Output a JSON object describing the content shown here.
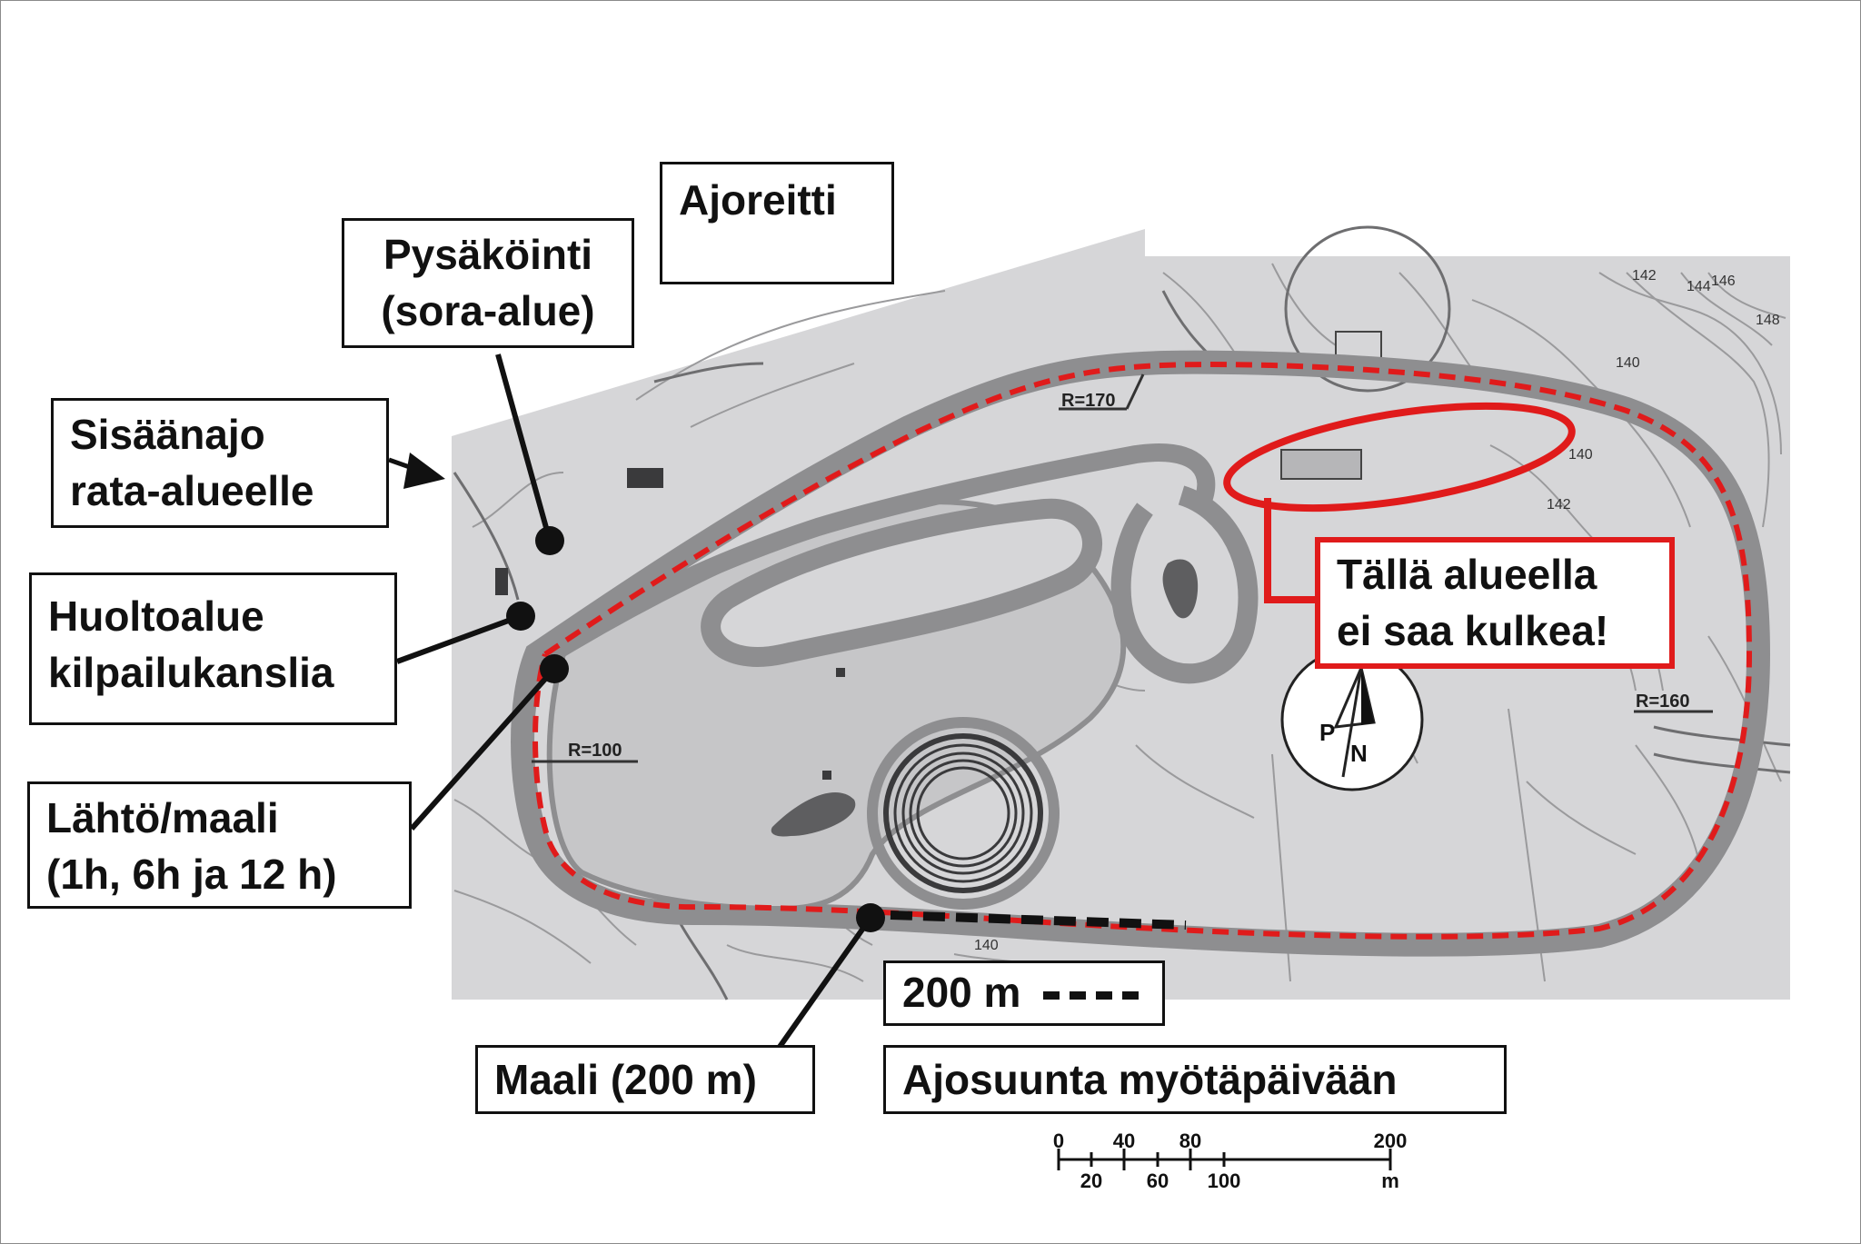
{
  "legend": {
    "title": "Ajoreitti",
    "route_color": "#e01b1b"
  },
  "labels": {
    "parking": [
      "Pysäköinti",
      "(sora-alue)"
    ],
    "entry": [
      "Sisäänajo",
      "rata-alueelle"
    ],
    "service": [
      "Huoltoalue",
      "kilpailukanslia"
    ],
    "start_finish": [
      "Lähtö/maali",
      "(1h, 6h ja 12 h)"
    ],
    "finish_200": "Maali (200 m)",
    "distance_200": "200 m",
    "direction": "Ajosuunta myötäpäivään",
    "forbidden": [
      "Tällä alueella",
      "ei saa kulkea!"
    ]
  },
  "map_text": {
    "r170": "R=170",
    "r100": "R=100",
    "r160": "R=160",
    "contours": [
      "142",
      "144",
      "146",
      "148",
      "140",
      "140",
      "142",
      "140"
    ],
    "north_p": "P",
    "north_n": "N"
  },
  "scale_bar": {
    "top_labels": [
      "0",
      "40",
      "80",
      "200"
    ],
    "bottom_labels": [
      "20",
      "60",
      "100",
      "m"
    ]
  },
  "colors": {
    "map_bg": "#d6d6d8",
    "track": "#8e8e90",
    "dark_fill": "#5e5e60",
    "warning": "#e01b1b"
  }
}
